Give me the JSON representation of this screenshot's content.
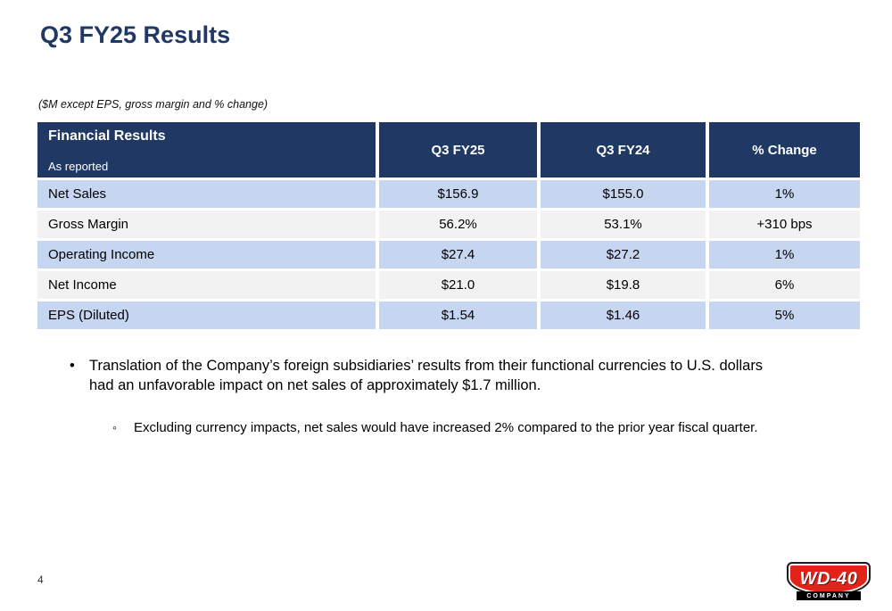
{
  "slide": {
    "title": "Q3 FY25 Results",
    "note": "($M except EPS, gross margin and % change)",
    "page_number": "4"
  },
  "table": {
    "header": {
      "title": "Financial Results",
      "subtitle": "As reported",
      "columns": [
        "Q3 FY25",
        "Q3 FY24",
        "% Change"
      ]
    },
    "rows": [
      {
        "label": "Net Sales",
        "q3fy25": "$156.9",
        "q3fy24": "$155.0",
        "change": "1%"
      },
      {
        "label": "Gross Margin",
        "q3fy25": "56.2%",
        "q3fy24": "53.1%",
        "change": "+310 bps"
      },
      {
        "label": "Operating Income",
        "q3fy25": "$27.4",
        "q3fy24": "$27.2",
        "change": "1%"
      },
      {
        "label": "Net Income",
        "q3fy25": "$21.0",
        "q3fy24": "$19.8",
        "change": "6%"
      },
      {
        "label": "EPS (Diluted)",
        "q3fy25": "$1.54",
        "q3fy24": "$1.46",
        "change": "5%"
      }
    ]
  },
  "bullets": {
    "main_marker": "•",
    "main": "Translation of the Company’s foreign subsidiaries’ results from their functional currencies to U.S. dollars had an unfavorable impact on net sales of approximately $1.7 million.",
    "sub_marker": "◦",
    "sub": "Excluding currency impacts, net sales would have increased 2% compared to the prior year fiscal quarter."
  },
  "logo": {
    "brand": "WD-40",
    "sub": "COMPANY"
  },
  "colors": {
    "navy": "#1F3864",
    "row_blue": "#C6D5F0",
    "row_gray": "#F2F2F2",
    "logo_red": "#E2231A"
  }
}
